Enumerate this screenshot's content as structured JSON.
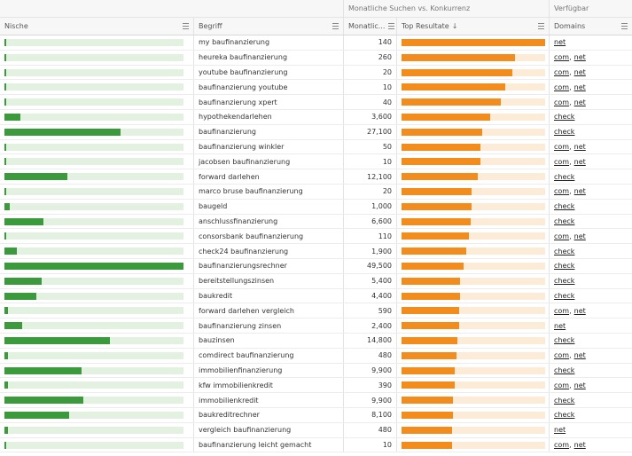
{
  "colors": {
    "green": "#3b9a3b",
    "orange": "#f28c1c"
  },
  "group_headers": {
    "searches_vs_competition": "Monatliche Suchen vs. Konkurrenz",
    "available": "Verfügbar"
  },
  "columns": {
    "nische": "Nische",
    "begriff": "Begriff",
    "monthly": "Monatlic...",
    "top_results": "Top Resultate",
    "domains": "Domains"
  },
  "rows": [
    {
      "begriff": "my baufinanzierung",
      "volume": "140",
      "niche": 0.01,
      "top": 1.0,
      "domains": [
        "net"
      ]
    },
    {
      "begriff": "heureka baufinanzierung",
      "volume": "260",
      "niche": 0.01,
      "top": 0.79,
      "domains": [
        "com",
        "net"
      ]
    },
    {
      "begriff": "youtube baufinanzierung",
      "volume": "20",
      "niche": 0.0,
      "top": 0.77,
      "domains": [
        "com",
        "net"
      ]
    },
    {
      "begriff": "baufinanzierung youtube",
      "volume": "10",
      "niche": 0.0,
      "top": 0.72,
      "domains": [
        "com",
        "net"
      ]
    },
    {
      "begriff": "baufinanzierung xpert",
      "volume": "40",
      "niche": 0.01,
      "top": 0.69,
      "domains": [
        "com",
        "net"
      ]
    },
    {
      "begriff": "hypothekendarlehen",
      "volume": "3,600",
      "niche": 0.09,
      "top": 0.62,
      "domains": [
        "check"
      ]
    },
    {
      "begriff": "baufinanzierung",
      "volume": "27,100",
      "niche": 0.65,
      "top": 0.56,
      "domains": [
        "check"
      ]
    },
    {
      "begriff": "baufinanzierung winkler",
      "volume": "50",
      "niche": 0.01,
      "top": 0.55,
      "domains": [
        "com",
        "net"
      ]
    },
    {
      "begriff": "jacobsen baufinanzierung",
      "volume": "10",
      "niche": 0.01,
      "top": 0.55,
      "domains": [
        "com",
        "net"
      ]
    },
    {
      "begriff": "forward darlehen",
      "volume": "12,100",
      "niche": 0.35,
      "top": 0.53,
      "domains": [
        "check"
      ]
    },
    {
      "begriff": "marco bruse baufinanzierung",
      "volume": "20",
      "niche": 0.0,
      "top": 0.49,
      "domains": [
        "com",
        "net"
      ]
    },
    {
      "begriff": "baugeld",
      "volume": "1,000",
      "niche": 0.03,
      "top": 0.49,
      "domains": [
        "check"
      ]
    },
    {
      "begriff": "anschlussfinanzierung",
      "volume": "6,600",
      "niche": 0.22,
      "top": 0.48,
      "domains": [
        "check"
      ]
    },
    {
      "begriff": "consorsbank baufinanzierung",
      "volume": "110",
      "niche": 0.01,
      "top": 0.47,
      "domains": [
        "com",
        "net"
      ]
    },
    {
      "begriff": "check24 baufinanzierung",
      "volume": "1,900",
      "niche": 0.07,
      "top": 0.45,
      "domains": [
        "check"
      ]
    },
    {
      "begriff": "baufinanzierungsrechner",
      "volume": "49,500",
      "niche": 1.0,
      "top": 0.43,
      "domains": [
        "check"
      ]
    },
    {
      "begriff": "bereitstellungszinsen",
      "volume": "5,400",
      "niche": 0.21,
      "top": 0.41,
      "domains": [
        "check"
      ]
    },
    {
      "begriff": "baukredit",
      "volume": "4,400",
      "niche": 0.18,
      "top": 0.41,
      "domains": [
        "check"
      ]
    },
    {
      "begriff": "forward darlehen vergleich",
      "volume": "590",
      "niche": 0.02,
      "top": 0.4,
      "domains": [
        "com",
        "net"
      ]
    },
    {
      "begriff": "baufinanzierung zinsen",
      "volume": "2,400",
      "niche": 0.1,
      "top": 0.4,
      "domains": [
        "net"
      ]
    },
    {
      "begriff": "bauzinsen",
      "volume": "14,800",
      "niche": 0.59,
      "top": 0.39,
      "domains": [
        "check"
      ]
    },
    {
      "begriff": "comdirect baufinanzierung",
      "volume": "480",
      "niche": 0.02,
      "top": 0.38,
      "domains": [
        "com",
        "net"
      ]
    },
    {
      "begriff": "immobilienfinanzierung",
      "volume": "9,900",
      "niche": 0.43,
      "top": 0.37,
      "domains": [
        "check"
      ]
    },
    {
      "begriff": "kfw immobilienkredit",
      "volume": "390",
      "niche": 0.02,
      "top": 0.37,
      "domains": [
        "com",
        "net"
      ]
    },
    {
      "begriff": "immobilienkredit",
      "volume": "9,900",
      "niche": 0.44,
      "top": 0.36,
      "domains": [
        "check"
      ]
    },
    {
      "begriff": "baukreditrechner",
      "volume": "8,100",
      "niche": 0.36,
      "top": 0.36,
      "domains": [
        "check"
      ]
    },
    {
      "begriff": "vergleich baufinanzierung",
      "volume": "480",
      "niche": 0.02,
      "top": 0.35,
      "domains": [
        "net"
      ]
    },
    {
      "begriff": "baufinanzierung leicht gemacht",
      "volume": "10",
      "niche": 0.0,
      "top": 0.35,
      "domains": [
        "com",
        "net"
      ]
    }
  ]
}
